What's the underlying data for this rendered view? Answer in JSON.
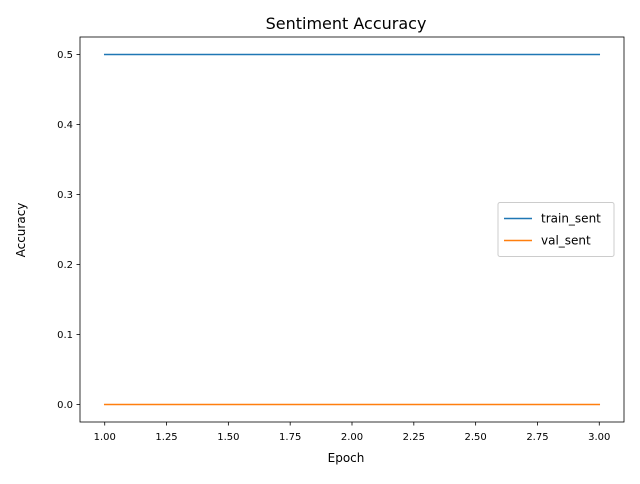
{
  "chart_data": {
    "type": "line",
    "title": "Sentiment Accuracy",
    "xlabel": "Epoch",
    "ylabel": "Accuracy",
    "xlim": [
      0.9,
      3.1
    ],
    "ylim": [
      -0.025,
      0.525
    ],
    "x_ticks": [
      1.0,
      1.25,
      1.5,
      1.75,
      2.0,
      2.25,
      2.5,
      2.75,
      3.0
    ],
    "x_tick_labels": [
      "1.00",
      "1.25",
      "1.50",
      "1.75",
      "2.00",
      "2.25",
      "2.50",
      "2.75",
      "3.00"
    ],
    "y_ticks": [
      0.0,
      0.1,
      0.2,
      0.3,
      0.4,
      0.5
    ],
    "y_tick_labels": [
      "0.0",
      "0.1",
      "0.2",
      "0.3",
      "0.4",
      "0.5"
    ],
    "grid": false,
    "legend_position": "center-right",
    "x": [
      1,
      2,
      3
    ],
    "series": [
      {
        "name": "train_sent",
        "values": [
          0.5,
          0.5,
          0.5
        ],
        "color": "#1f77b4"
      },
      {
        "name": "val_sent",
        "values": [
          0.0,
          0.0,
          0.0
        ],
        "color": "#ff7f0e"
      }
    ]
  }
}
